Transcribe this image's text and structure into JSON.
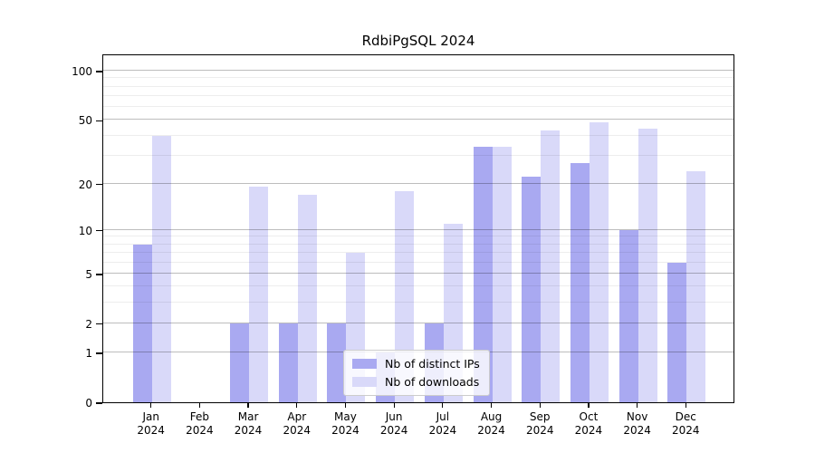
{
  "title": "RdbiPgSQL 2024",
  "chart_data": {
    "type": "bar",
    "title": "RdbiPgSQL 2024",
    "categories": [
      "Jan 2024",
      "Feb 2024",
      "Mar 2024",
      "Apr 2024",
      "May 2024",
      "Jun 2024",
      "Jul 2024",
      "Aug 2024",
      "Sep 2024",
      "Oct 2024",
      "Nov 2024",
      "Dec 2024"
    ],
    "series": [
      {
        "name": "Nb of distinct IPs",
        "color": "#a9a9f1",
        "values": [
          8,
          0,
          2,
          2,
          2,
          1,
          2,
          34,
          22,
          27,
          10,
          6
        ]
      },
      {
        "name": "Nb of downloads",
        "color": "#d9d9f9",
        "values": [
          40,
          0,
          19,
          17,
          7,
          18,
          11,
          34,
          43,
          48,
          44,
          24
        ]
      }
    ],
    "xlabel": "",
    "ylabel": "",
    "yscale": "log1p",
    "ylim": [
      0,
      127.4
    ],
    "y_major_ticks": [
      0,
      1,
      2,
      5,
      10,
      20,
      50,
      100
    ],
    "y_minor_ticks": [
      3,
      4,
      6,
      7,
      8,
      9,
      30,
      40,
      60,
      70,
      80,
      90
    ],
    "grid": true,
    "legend_position": "lower center"
  },
  "legend": {
    "items": [
      {
        "label": "Nb of distinct IPs",
        "color": "#a9a9f1"
      },
      {
        "label": "Nb of downloads",
        "color": "#d9d9f9"
      }
    ]
  },
  "colors": {
    "bar_dark": "#a9a9f1",
    "bar_light": "#d9d9f9",
    "spine": "#000000",
    "grid_major": "#bdbdbd",
    "grid_minor": "#ececec",
    "background": "#ffffff"
  }
}
